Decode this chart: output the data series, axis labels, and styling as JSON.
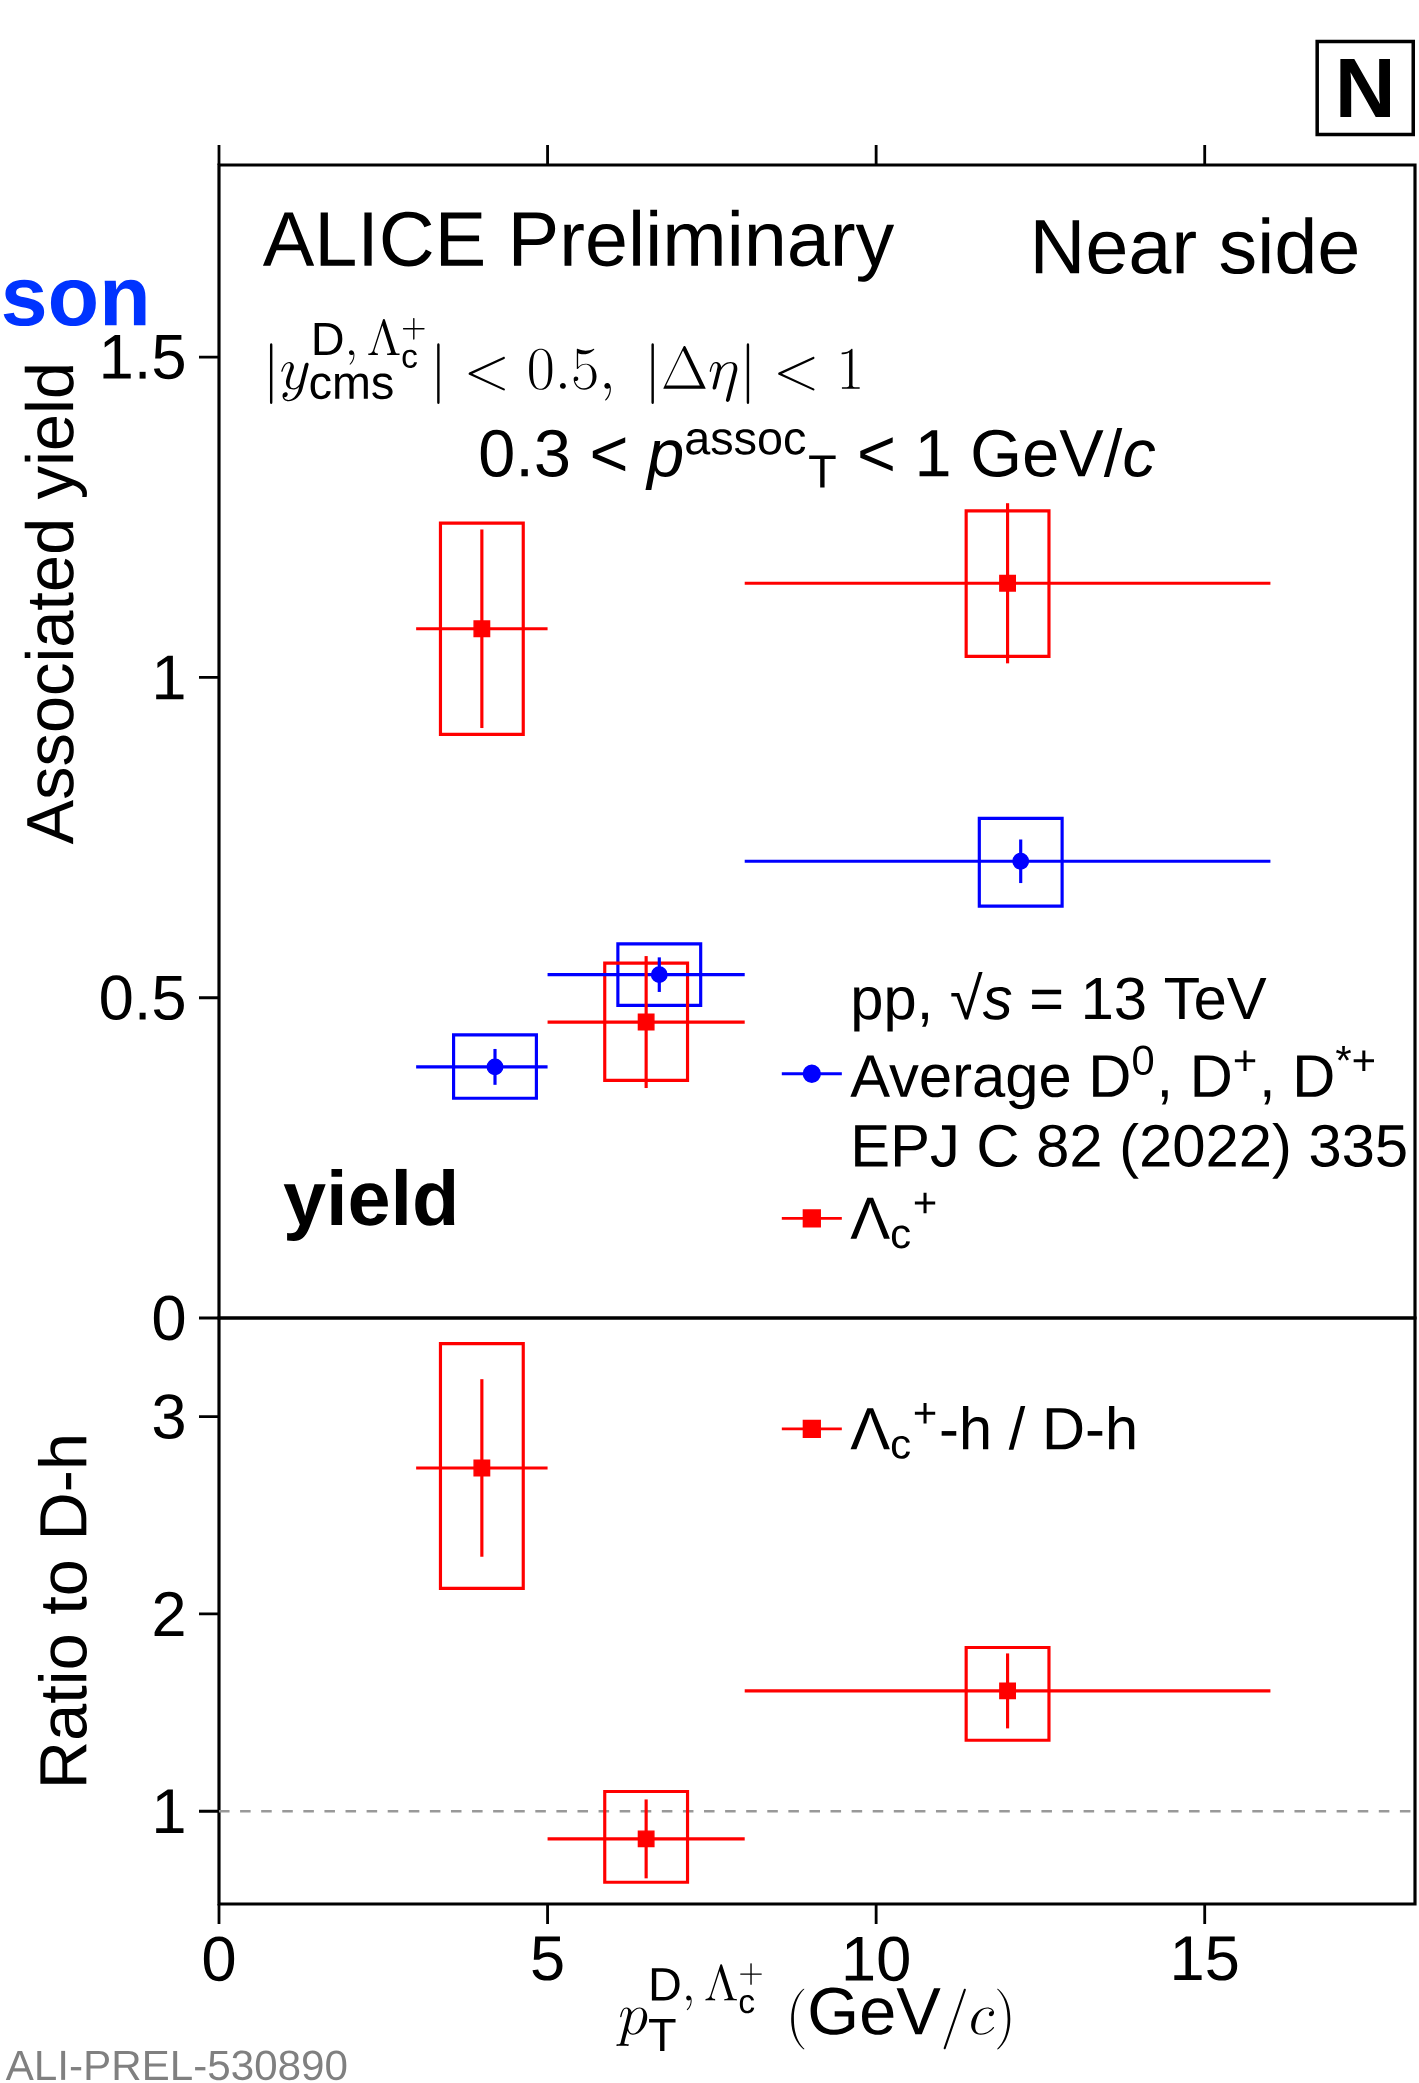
{
  "chart_data": [
    {
      "type": "scatter",
      "ylabel": "Associated yield",
      "xlim": [
        0,
        18.2
      ],
      "ylim": [
        0,
        1.8
      ],
      "xticks": [
        0,
        5,
        10,
        15
      ],
      "yticks": [
        0,
        0.5,
        1,
        1.5
      ],
      "tick_labels": "y",
      "legend": "bottom right",
      "annotations": [
        "ALICE Preliminary",
        "Near side",
        "|y^{\\mathrm{D},\\,\\Lambda_{\\mathrm{c}}^{+}}_{\\mathrm{cms}}| < 0.5,\\ |\\Delta\\eta| < 1",
        "0.3 < *p*$^{assoc}$$_{T}$ < 1 GeV/*c*",
        "pp, √*s* = 13 TeV",
        "EPJ C 82 (2022) 335",
        "**yield**",
        "**son**",
        "**N**",
        "ALI-PREL-530890"
      ],
      "series": [
        {
          "name": "Average D$^{0}$, D$^{+}$, D$^{*+}$",
          "color": "#0000ff",
          "marker": "circle",
          "x": [
            4.2,
            6.7,
            12.2
          ],
          "values": [
            0.392,
            0.536,
            0.713
          ],
          "errors": [
            0.028,
            0.027,
            0.034
          ],
          "xerrors": [
            [
              3,
              5
            ],
            [
              5,
              8
            ],
            [
              8,
              16
            ]
          ]
        },
        {
          "name": "Λ$_{c}$$^{+}$",
          "color": "#ff0000",
          "marker": "square",
          "x": [
            4.0,
            6.5,
            12.0
          ],
          "values": [
            1.076,
            0.462,
            1.147
          ],
          "errors": [
            0.155,
            0.103,
            0.125
          ],
          "xerrors": [
            [
              3,
              5
            ],
            [
              5,
              8
            ],
            [
              8,
              16
            ]
          ]
        },
        {
          "type": "bar",
          "color": "#0000ff",
          "x": [
            4.2,
            6.7,
            12.2
          ],
          "base": [
            0.343,
            0.488,
            0.643
          ],
          "values": [
            0.099,
            0.096,
            0.137
          ]
        },
        {
          "type": "bar",
          "color": "#ff0000",
          "x": [
            4.0,
            6.5,
            12.0
          ],
          "base": [
            0.911,
            0.371,
            1.033
          ],
          "values": [
            0.33,
            0.183,
            0.227
          ]
        }
      ]
    },
    {
      "type": "scatter",
      "xlabel": "p_{\\mathrm{T}}^{\\mathrm{D},\\,\\Lambda_{\\mathrm{c}}^{+}}\\ (\\mathrm{GeV}/c)",
      "ylabel": "Ratio to D-h",
      "xlim": [
        0,
        18.2
      ],
      "ylim": [
        0.53,
        3.5
      ],
      "xticks": [
        0,
        5,
        10,
        15
      ],
      "yticks": [
        1,
        2,
        3
      ],
      "legend": "top right",
      "ref_lines": [
        {
          "axis": "y",
          "value": 1,
          "color": "#999999",
          "line_style": "dashed"
        }
      ],
      "series": [
        {
          "name": "Λ$_{c}$$^{+}$-h / D-h",
          "color": "#ff0000",
          "marker": "square",
          "x": [
            4.0,
            6.5,
            12.0
          ],
          "values": [
            2.74,
            0.86,
            1.61
          ],
          "errors": [
            0.45,
            0.2,
            0.19
          ],
          "xerrors": [
            [
              3,
              5
            ],
            [
              5,
              8
            ],
            [
              8,
              16
            ]
          ]
        },
        {
          "type": "bar",
          "color": "#ff0000",
          "x": [
            4.0,
            6.5,
            12.0
          ],
          "base": [
            2.13,
            0.64,
            1.36
          ],
          "values": [
            1.24,
            0.46,
            0.47
          ]
        }
      ]
    }
  ]
}
